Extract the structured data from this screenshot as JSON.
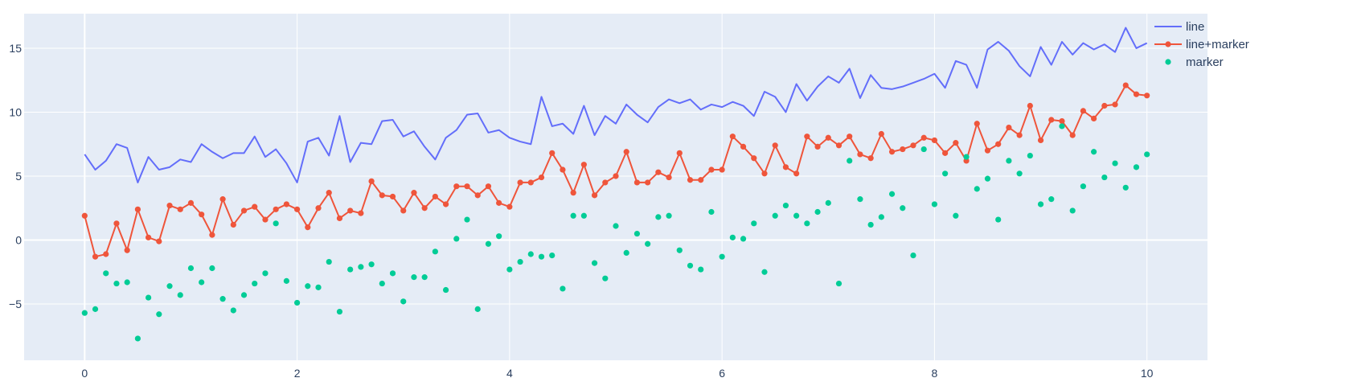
{
  "chart_data": {
    "type": "line",
    "title": "",
    "xlabel": "",
    "ylabel": "",
    "xlim": [
      -0.57,
      10.57
    ],
    "ylim": [
      -9.4,
      17.7
    ],
    "x_ticks": [
      0,
      2,
      4,
      6,
      8,
      10
    ],
    "y_ticks": [
      -5,
      0,
      5,
      10,
      15
    ],
    "grid": true,
    "legend_position": "top-right",
    "colors": {
      "plot_bg": "#e5ecf6",
      "grid": "#ffffff",
      "tick_text": "#2a3f5f"
    },
    "x": [
      0,
      0.1,
      0.2,
      0.3,
      0.4,
      0.5,
      0.6,
      0.7,
      0.8,
      0.9,
      1.0,
      1.1,
      1.2,
      1.3,
      1.4,
      1.5,
      1.6,
      1.7,
      1.8,
      1.9,
      2.0,
      2.1,
      2.2,
      2.3,
      2.4,
      2.5,
      2.6,
      2.7,
      2.8,
      2.9,
      3.0,
      3.1,
      3.2,
      3.3,
      3.4,
      3.5,
      3.6,
      3.7,
      3.8,
      3.9,
      4.0,
      4.1,
      4.2,
      4.3,
      4.4,
      4.5,
      4.6,
      4.7,
      4.8,
      4.9,
      5.0,
      5.1,
      5.2,
      5.3,
      5.4,
      5.5,
      5.6,
      5.7,
      5.8,
      5.9,
      6.0,
      6.1,
      6.2,
      6.3,
      6.4,
      6.5,
      6.6,
      6.7,
      6.8,
      6.9,
      7.0,
      7.1,
      7.2,
      7.3,
      7.4,
      7.5,
      7.6,
      7.7,
      7.8,
      7.9,
      8.0,
      8.1,
      8.2,
      8.3,
      8.4,
      8.5,
      8.6,
      8.7,
      8.8,
      8.9,
      9.0,
      9.1,
      9.2,
      9.3,
      9.4,
      9.5,
      9.6,
      9.7,
      9.8,
      9.9,
      10.0
    ],
    "series": [
      {
        "name": "line",
        "mode": "lines",
        "color": "#636efa",
        "values": [
          6.7,
          5.5,
          6.2,
          7.5,
          7.2,
          4.5,
          6.5,
          5.5,
          5.7,
          6.3,
          6.1,
          7.5,
          6.9,
          6.4,
          6.8,
          6.8,
          8.1,
          6.5,
          7.1,
          6.0,
          4.5,
          7.7,
          8.0,
          6.6,
          9.7,
          6.1,
          7.6,
          7.5,
          9.3,
          9.4,
          8.1,
          8.5,
          7.3,
          6.3,
          8.0,
          8.6,
          9.8,
          9.9,
          8.4,
          8.6,
          8.0,
          7.7,
          7.5,
          11.2,
          8.9,
          9.1,
          8.3,
          10.5,
          8.2,
          9.7,
          9.1,
          10.6,
          9.8,
          9.2,
          10.4,
          11.0,
          10.7,
          11.0,
          10.2,
          10.6,
          10.4,
          10.8,
          10.5,
          9.7,
          11.6,
          11.2,
          10.0,
          12.2,
          10.9,
          12.0,
          12.8,
          12.3,
          13.4,
          11.1,
          12.9,
          11.9,
          11.8,
          12.0,
          12.3,
          12.6,
          13.0,
          11.9,
          14.0,
          13.7,
          11.9,
          14.9,
          15.5,
          14.8,
          13.6,
          12.8,
          15.1,
          13.7,
          15.5,
          14.5,
          15.4,
          14.9,
          15.3,
          14.7,
          16.6,
          15.0,
          15.4
        ]
      },
      {
        "name": "line+marker",
        "mode": "lines+markers",
        "color": "#ef553b",
        "values": [
          1.9,
          -1.3,
          -1.1,
          1.3,
          -0.8,
          2.4,
          0.2,
          -0.1,
          2.7,
          2.4,
          2.9,
          2.0,
          0.4,
          3.2,
          1.2,
          2.3,
          2.6,
          1.6,
          2.4,
          2.8,
          2.4,
          1.0,
          2.5,
          3.7,
          1.7,
          2.3,
          2.1,
          4.6,
          3.5,
          3.4,
          2.3,
          3.7,
          2.5,
          3.4,
          2.8,
          4.2,
          4.2,
          3.5,
          4.2,
          2.9,
          2.6,
          4.5,
          4.5,
          4.9,
          6.8,
          5.5,
          3.7,
          5.9,
          3.5,
          4.5,
          5.0,
          6.9,
          4.5,
          4.5,
          5.3,
          4.9,
          6.8,
          4.7,
          4.7,
          5.5,
          5.5,
          8.1,
          7.3,
          6.4,
          5.2,
          7.4,
          5.7,
          5.2,
          8.1,
          7.3,
          8.0,
          7.4,
          8.1,
          6.7,
          6.4,
          8.3,
          6.9,
          7.1,
          7.4,
          8.0,
          7.8,
          6.8,
          7.6,
          6.2,
          9.1,
          7.0,
          7.5,
          8.8,
          8.2,
          10.5,
          7.8,
          9.4,
          9.3,
          8.2,
          10.1,
          9.5,
          10.5,
          10.6,
          12.1,
          11.4,
          11.3
        ]
      },
      {
        "name": "marker",
        "mode": "markers",
        "color": "#00cc96",
        "values": [
          -5.7,
          -5.4,
          -2.6,
          -3.4,
          -3.3,
          -7.7,
          -4.5,
          -5.8,
          -3.6,
          -4.3,
          -2.2,
          -3.3,
          -2.2,
          -4.6,
          -5.5,
          -4.3,
          -3.4,
          -2.6,
          1.3,
          -3.2,
          -4.9,
          -3.6,
          -3.7,
          -1.7,
          -5.6,
          -2.3,
          -2.1,
          -1.9,
          -3.4,
          -2.6,
          -4.8,
          -2.9,
          -2.9,
          -0.9,
          -3.9,
          0.1,
          1.6,
          -5.4,
          -0.3,
          0.3,
          -2.3,
          -1.7,
          -1.1,
          -1.3,
          -1.2,
          -3.8,
          1.9,
          1.9,
          -1.8,
          -3.0,
          1.1,
          -1.0,
          0.5,
          -0.3,
          1.8,
          1.9,
          -0.8,
          -2.0,
          -2.3,
          2.2,
          -1.3,
          0.2,
          0.1,
          1.3,
          -2.5,
          1.9,
          2.7,
          1.9,
          1.3,
          2.2,
          2.9,
          -3.4,
          6.2,
          3.2,
          1.2,
          1.8,
          3.6,
          2.5,
          -1.2,
          7.1,
          2.8,
          5.2,
          1.9,
          6.5,
          4.0,
          4.8,
          1.6,
          6.2,
          5.2,
          6.6,
          2.8,
          3.2,
          8.9,
          2.3,
          4.2,
          6.9,
          4.9,
          6.0,
          4.1,
          5.7,
          6.7
        ]
      }
    ]
  }
}
